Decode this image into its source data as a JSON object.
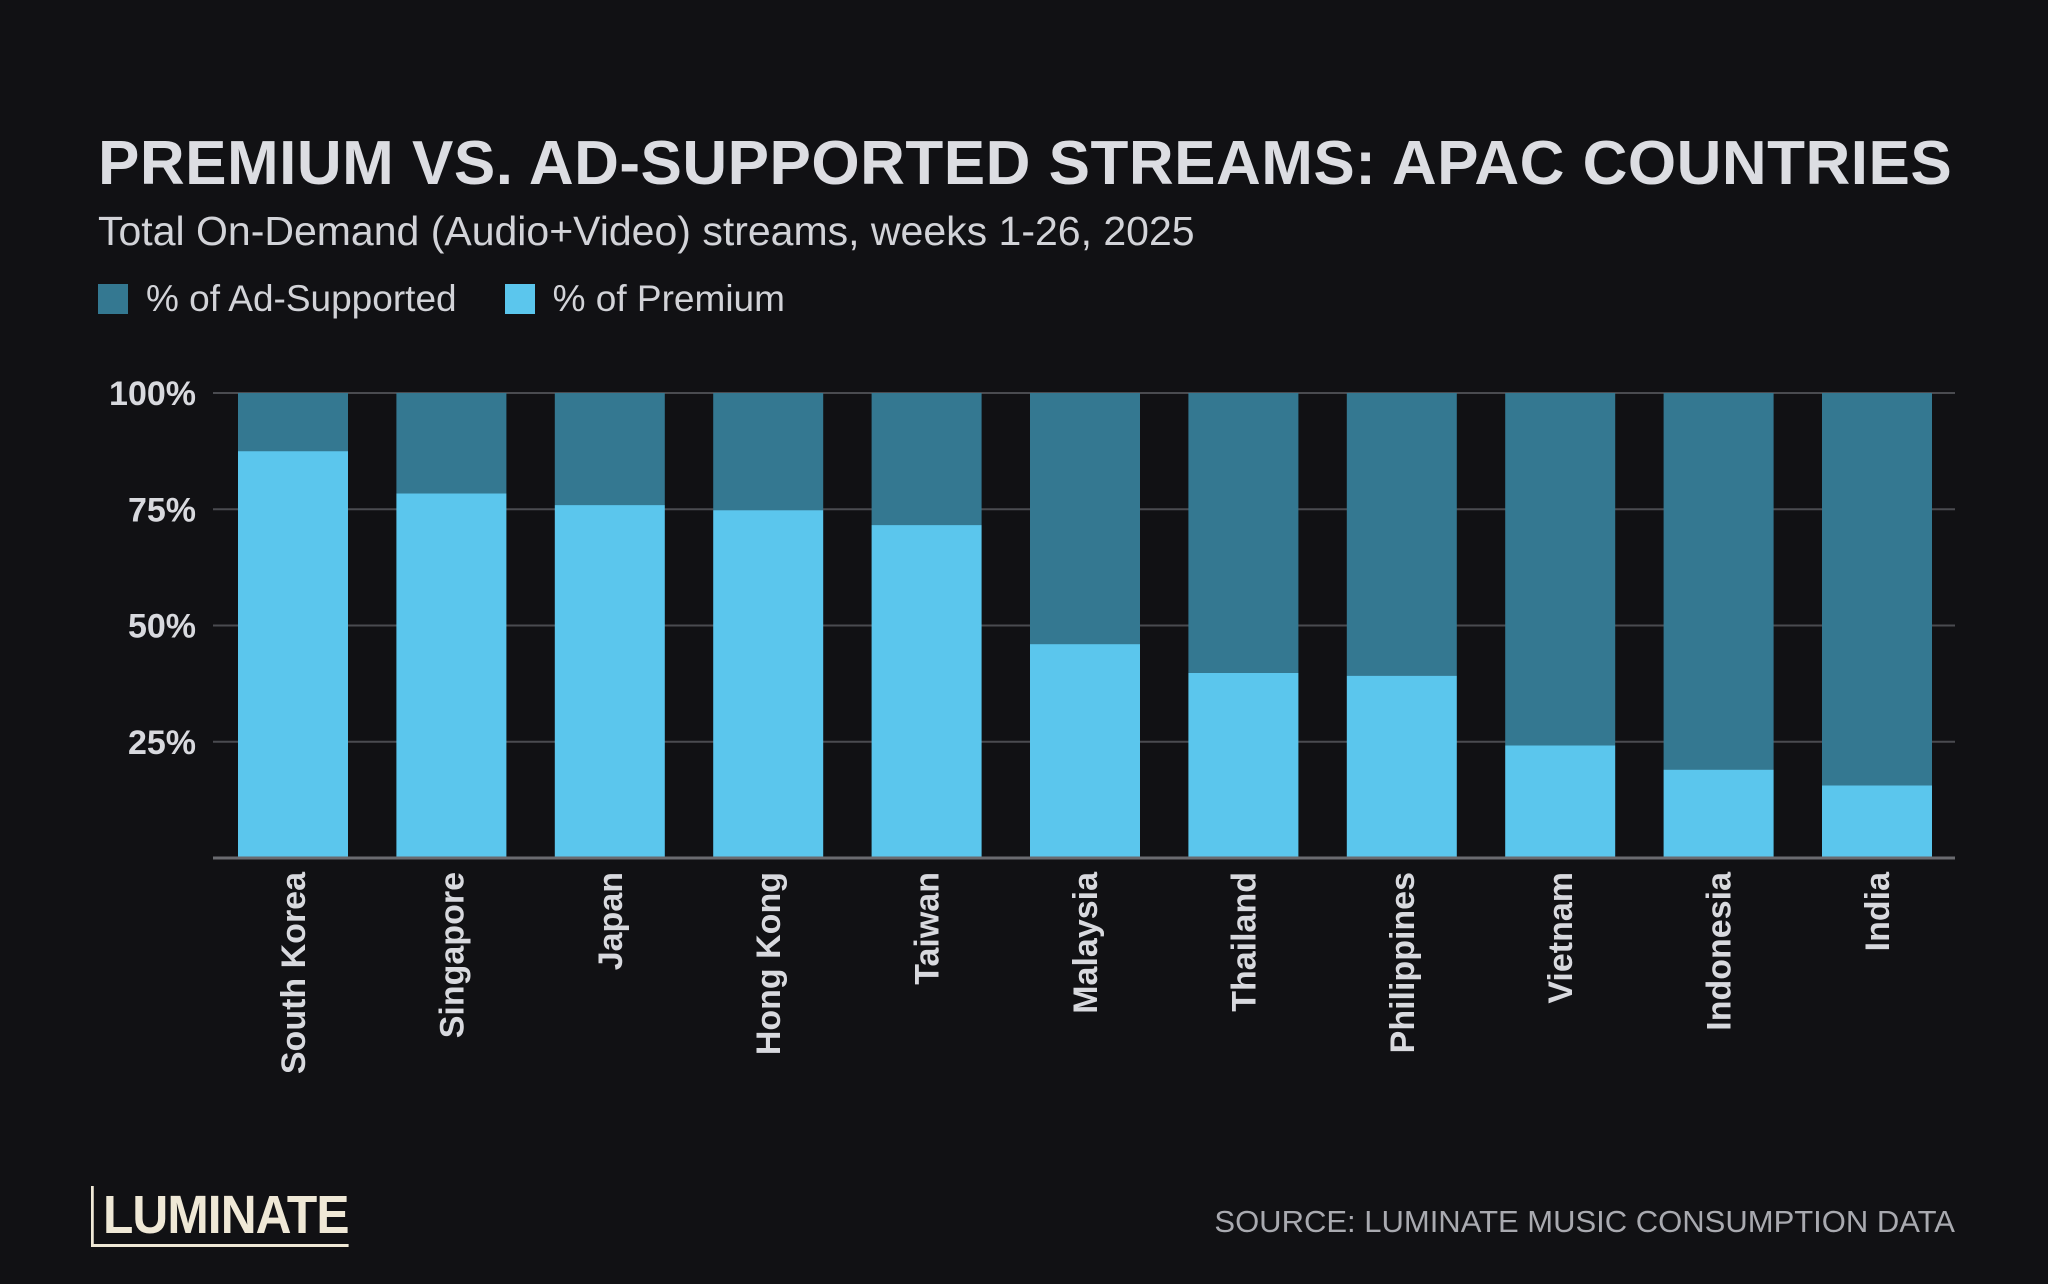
{
  "chart_data": {
    "type": "bar",
    "stacked": true,
    "title": "PREMIUM VS. AD-SUPPORTED STREAMS: APAC COUNTRIES",
    "subtitle": "Total On-Demand (Audio+Video) streams, weeks 1-26, 2025",
    "categories": [
      "South Korea",
      "Singapore",
      "Japan",
      "Hong Kong",
      "Taiwan",
      "Malaysia",
      "Thailand",
      "Philippines",
      "Vietnam",
      "Indonesia",
      "India"
    ],
    "series": [
      {
        "name": "% of Premium",
        "color": "#5bc6ed",
        "values": [
          87.5,
          78.4,
          75.9,
          74.8,
          71.6,
          46.0,
          39.8,
          39.2,
          24.2,
          19.0,
          15.6
        ]
      },
      {
        "name": "% of Ad-Supported",
        "color": "#347891",
        "values": [
          12.5,
          21.6,
          24.1,
          25.2,
          28.4,
          54.0,
          60.2,
          60.8,
          75.8,
          81.0,
          84.4
        ]
      }
    ],
    "legend_order": [
      "% of Ad-Supported",
      "% of Premium"
    ],
    "legend_placement": "top-left",
    "ylim": [
      0,
      100
    ],
    "yticks": [
      25,
      50,
      75,
      100
    ],
    "ytick_labels": [
      "25%",
      "50%",
      "75%",
      "100%"
    ],
    "grid": true,
    "background": "#111114"
  },
  "footer": {
    "logo": "LUMINATE",
    "source": "SOURCE: LUMINATE MUSIC CONSUMPTION DATA"
  }
}
